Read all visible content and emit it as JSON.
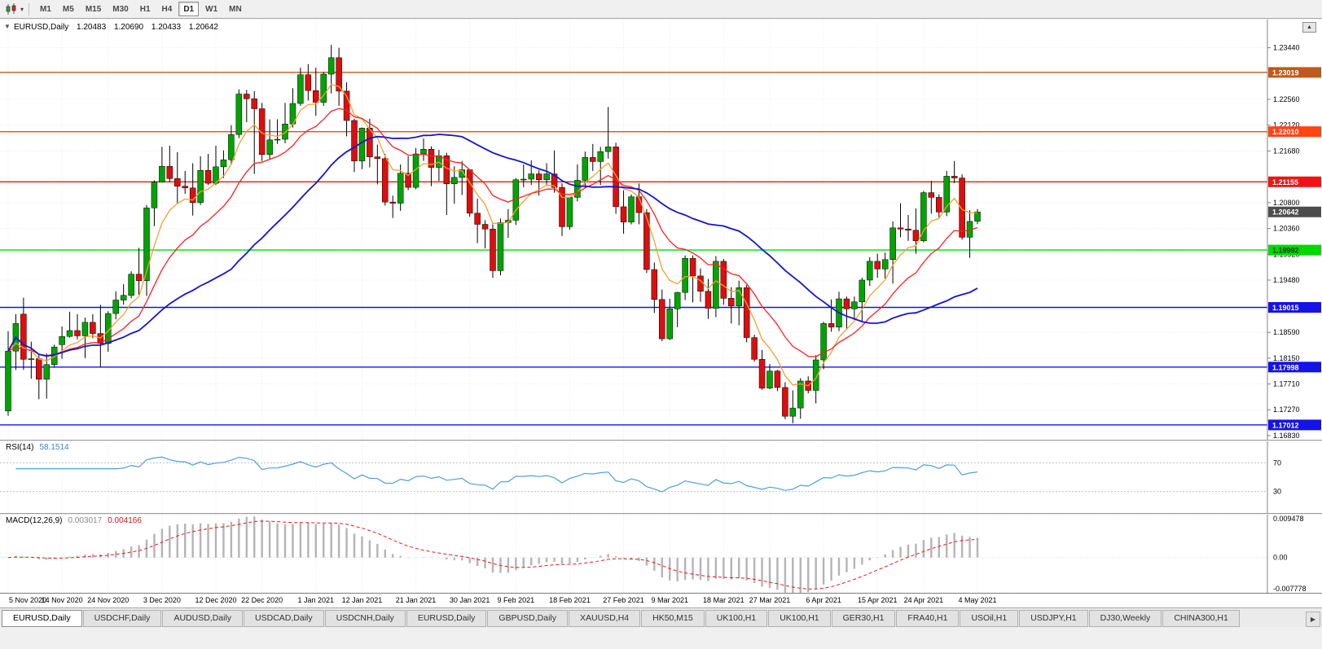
{
  "toolbar": {
    "timeframes": [
      "M1",
      "M5",
      "M15",
      "M30",
      "H1",
      "H4",
      "D1",
      "W1",
      "MN"
    ],
    "active_timeframe": "D1"
  },
  "icons": {
    "chart_type": "candlestick-chart-icon",
    "chart_type_dropdown_glyph": "▾",
    "one_click_trading_glyph": "▼",
    "scroll_up_glyph": "▲",
    "tab_scroll_right_glyph": "▶"
  },
  "chart_header": {
    "symbol": "EURUSD,Daily",
    "open": "1.20483",
    "high": "1.20690",
    "low": "1.20433",
    "close": "1.20642"
  },
  "tabs": {
    "active_index": 0,
    "items": [
      "EURUSD,Daily",
      "USDCHF,Daily",
      "AUDUSD,Daily",
      "USDCAD,Daily",
      "USDCNH,Daily",
      "EURUSD,Daily",
      "GBPUSD,Daily",
      "XAUUSD,H4",
      "HK50,M15",
      "UK100,H1",
      "UK100,H1",
      "GER30,H1",
      "FRA40,H1",
      "USOil,H1",
      "USDJPY,H1",
      "DJ30,Weekly",
      "CHINA300,H1"
    ]
  },
  "chart_data": {
    "type": "candlestick",
    "symbol": "EURUSD",
    "timeframe": "Daily",
    "y_range": [
      1.1676,
      1.2392
    ],
    "y_axis_ticks": [
      "1.23440",
      "1.22560",
      "1.22120",
      "1.21680",
      "1.20800",
      "1.20360",
      "1.19920",
      "1.19480",
      "1.18590",
      "1.18150",
      "1.17710",
      "1.17270",
      "1.16830"
    ],
    "x_labels": [
      "5 Nov 2020",
      "14 Nov 2020",
      "24 Nov 2020",
      "3 Dec 2020",
      "12 Dec 2020",
      "22 Dec 2020",
      "1 Jan 2021",
      "12 Jan 2021",
      "21 Jan 2021",
      "30 Jan 2021",
      "9 Feb 2021",
      "18 Feb 2021",
      "27 Feb 2021",
      "9 Mar 2021",
      "18 Mar 2021",
      "27 Mar 2021",
      "6 Apr 2021",
      "15 Apr 2021",
      "24 Apr 2021",
      "4 May 2021"
    ],
    "candle_up_color": "#00a400",
    "candle_down_color": "#df0d0d",
    "ohlc": [
      [
        1.1725,
        1.1861,
        1.1717,
        1.1827
      ],
      [
        1.1827,
        1.189,
        1.1795,
        1.1874
      ],
      [
        1.189,
        1.1918,
        1.1795,
        1.1813
      ],
      [
        1.1813,
        1.1843,
        1.178,
        1.1814
      ],
      [
        1.1814,
        1.182,
        1.1745,
        1.1779
      ],
      [
        1.1779,
        1.1823,
        1.1746,
        1.1804
      ],
      [
        1.1804,
        1.1838,
        1.1799,
        1.1834
      ],
      [
        1.1838,
        1.1869,
        1.1814,
        1.1852
      ],
      [
        1.1852,
        1.1894,
        1.185,
        1.1862
      ],
      [
        1.1862,
        1.189,
        1.1847,
        1.1853
      ],
      [
        1.1853,
        1.1884,
        1.1815,
        1.1876
      ],
      [
        1.1876,
        1.189,
        1.1849,
        1.1857
      ],
      [
        1.1857,
        1.1906,
        1.18,
        1.184
      ],
      [
        1.184,
        1.1895,
        1.1826,
        1.1891
      ],
      [
        1.1891,
        1.1929,
        1.1881,
        1.1914
      ],
      [
        1.1914,
        1.1941,
        1.1906,
        1.1922
      ],
      [
        1.1922,
        1.1963,
        1.1917,
        1.1958
      ],
      [
        1.1958,
        1.2003,
        1.1923,
        1.1947
      ],
      [
        1.1947,
        1.2076,
        1.1921,
        1.2071
      ],
      [
        1.2071,
        1.2118,
        1.204,
        1.2115
      ],
      [
        1.2115,
        1.2175,
        1.2114,
        1.2142
      ],
      [
        1.2142,
        1.2177,
        1.2115,
        1.2121
      ],
      [
        1.2121,
        1.2166,
        1.2079,
        1.2108
      ],
      [
        1.2108,
        1.2134,
        1.2095,
        1.2105
      ],
      [
        1.2105,
        1.2147,
        1.2058,
        1.208
      ],
      [
        1.208,
        1.2159,
        1.2076,
        1.2135
      ],
      [
        1.2135,
        1.2163,
        1.211,
        1.2113
      ],
      [
        1.2113,
        1.2177,
        1.211,
        1.2141
      ],
      [
        1.2141,
        1.2169,
        1.2122,
        1.2153
      ],
      [
        1.2153,
        1.2212,
        1.2145,
        1.2196
      ],
      [
        1.2196,
        1.2273,
        1.219,
        1.2265
      ],
      [
        1.2265,
        1.2272,
        1.2217,
        1.2257
      ],
      [
        1.2257,
        1.227,
        1.2129,
        1.224
      ],
      [
        1.224,
        1.225,
        1.2151,
        1.2162
      ],
      [
        1.2162,
        1.2222,
        1.2153,
        1.2187
      ],
      [
        1.2187,
        1.2222,
        1.218,
        1.2188
      ],
      [
        1.2188,
        1.225,
        1.2181,
        1.2214
      ],
      [
        1.2214,
        1.2275,
        1.2208,
        1.2249
      ],
      [
        1.2249,
        1.231,
        1.2245,
        1.2298
      ],
      [
        1.2298,
        1.2316,
        1.2254,
        1.2271
      ],
      [
        1.2271,
        1.231,
        1.2228,
        1.2251
      ],
      [
        1.2251,
        1.2303,
        1.2245,
        1.2299
      ],
      [
        1.2299,
        1.2349,
        1.2266,
        1.2327
      ],
      [
        1.2327,
        1.2344,
        1.2245,
        1.227
      ],
      [
        1.227,
        1.2285,
        1.2193,
        1.222
      ],
      [
        1.222,
        1.2223,
        1.2132,
        1.2151
      ],
      [
        1.2151,
        1.2208,
        1.2137,
        1.2207
      ],
      [
        1.2207,
        1.2223,
        1.214,
        1.2158
      ],
      [
        1.2158,
        1.2179,
        1.2111,
        1.2155
      ],
      [
        1.2155,
        1.2163,
        1.2075,
        1.2081
      ],
      [
        1.2081,
        1.2092,
        1.2054,
        1.2079
      ],
      [
        1.2079,
        1.2145,
        1.2066,
        1.213
      ],
      [
        1.213,
        1.2159,
        1.2101,
        1.2106
      ],
      [
        1.2106,
        1.2173,
        1.2103,
        1.2163
      ],
      [
        1.2163,
        1.2189,
        1.2151,
        1.2171
      ],
      [
        1.2171,
        1.2176,
        1.2108,
        1.214
      ],
      [
        1.214,
        1.217,
        1.2117,
        1.216
      ],
      [
        1.216,
        1.2165,
        1.2059,
        1.2112
      ],
      [
        1.2112,
        1.2142,
        1.2078,
        1.2123
      ],
      [
        1.2123,
        1.2151,
        1.2093,
        1.2136
      ],
      [
        1.2136,
        1.2136,
        1.2056,
        1.2062
      ],
      [
        1.2062,
        1.2087,
        1.2011,
        1.2043
      ],
      [
        1.2043,
        1.205,
        1.2002,
        1.2035
      ],
      [
        1.2035,
        1.2043,
        1.1952,
        1.1964
      ],
      [
        1.1964,
        1.2053,
        1.1956,
        1.2046
      ],
      [
        1.2046,
        1.2069,
        1.202,
        1.205
      ],
      [
        1.205,
        1.2122,
        1.2042,
        1.2119
      ],
      [
        1.2119,
        1.2145,
        1.2106,
        1.212
      ],
      [
        1.212,
        1.2152,
        1.211,
        1.2129
      ],
      [
        1.2129,
        1.2135,
        1.2092,
        1.2119
      ],
      [
        1.2119,
        1.2147,
        1.211,
        1.2129
      ],
      [
        1.2129,
        1.2169,
        1.2097,
        1.2106
      ],
      [
        1.2106,
        1.2113,
        1.2023,
        1.2039
      ],
      [
        1.2039,
        1.2089,
        1.2034,
        1.2089
      ],
      [
        1.2089,
        1.2145,
        1.2082,
        1.2118
      ],
      [
        1.2118,
        1.2167,
        1.2104,
        1.2157
      ],
      [
        1.2157,
        1.218,
        1.2134,
        1.215
      ],
      [
        1.215,
        1.2175,
        1.211,
        1.2167
      ],
      [
        1.2167,
        1.2243,
        1.2155,
        1.2175
      ],
      [
        1.2175,
        1.2182,
        1.2061,
        1.2073
      ],
      [
        1.2073,
        1.2101,
        1.2027,
        1.2047
      ],
      [
        1.2047,
        1.2094,
        1.2043,
        1.209
      ],
      [
        1.209,
        1.2113,
        1.2043,
        1.2063
      ],
      [
        1.2063,
        1.2069,
        1.196,
        1.1966
      ],
      [
        1.1966,
        1.1978,
        1.1892,
        1.1915
      ],
      [
        1.1915,
        1.1932,
        1.1844,
        1.1848
      ],
      [
        1.1848,
        1.1916,
        1.1846,
        1.1899
      ],
      [
        1.1899,
        1.1928,
        1.1868,
        1.1927
      ],
      [
        1.1927,
        1.199,
        1.1914,
        1.1985
      ],
      [
        1.1985,
        1.199,
        1.191,
        1.1955
      ],
      [
        1.1955,
        1.1968,
        1.1911,
        1.1929
      ],
      [
        1.1929,
        1.195,
        1.1882,
        1.19
      ],
      [
        1.19,
        1.1989,
        1.1885,
        1.198
      ],
      [
        1.198,
        1.1984,
        1.1906,
        1.1917
      ],
      [
        1.1917,
        1.1936,
        1.1874,
        1.1904
      ],
      [
        1.1904,
        1.1947,
        1.1871,
        1.1935
      ],
      [
        1.1935,
        1.194,
        1.1842,
        1.185
      ],
      [
        1.185,
        1.1855,
        1.1809,
        1.1813
      ],
      [
        1.1813,
        1.1829,
        1.1761,
        1.1764
      ],
      [
        1.1764,
        1.1805,
        1.1762,
        1.1793
      ],
      [
        1.1793,
        1.1795,
        1.1759,
        1.1765
      ],
      [
        1.1765,
        1.1774,
        1.1711,
        1.1716
      ],
      [
        1.1716,
        1.176,
        1.1704,
        1.173
      ],
      [
        1.173,
        1.1781,
        1.1712,
        1.1776
      ],
      [
        1.1776,
        1.1784,
        1.1755,
        1.176
      ],
      [
        1.176,
        1.182,
        1.1738,
        1.1812
      ],
      [
        1.1812,
        1.1877,
        1.1796,
        1.1874
      ],
      [
        1.1874,
        1.1915,
        1.186,
        1.1868
      ],
      [
        1.1868,
        1.1928,
        1.1861,
        1.1916
      ],
      [
        1.1916,
        1.192,
        1.1865,
        1.1899
      ],
      [
        1.1899,
        1.192,
        1.188,
        1.1911
      ],
      [
        1.1911,
        1.1952,
        1.1878,
        1.1948
      ],
      [
        1.1948,
        1.1987,
        1.1938,
        1.198
      ],
      [
        1.198,
        1.1993,
        1.1952,
        1.1967
      ],
      [
        1.1967,
        1.1995,
        1.1951,
        1.1983
      ],
      [
        1.1983,
        1.2048,
        1.1942,
        1.2037
      ],
      [
        1.2037,
        1.2079,
        1.2021,
        1.2035
      ],
      [
        1.2035,
        1.2059,
        1.2015,
        1.2033
      ],
      [
        1.2033,
        1.207,
        1.1993,
        1.2015
      ],
      [
        1.2015,
        1.21,
        1.2012,
        1.2097
      ],
      [
        1.2097,
        1.2117,
        1.2061,
        1.2089
      ],
      [
        1.2089,
        1.2094,
        1.2055,
        1.2064
      ],
      [
        1.2064,
        1.2134,
        1.2057,
        1.2125
      ],
      [
        1.2125,
        1.2151,
        1.2113,
        1.2122
      ],
      [
        1.2122,
        1.2128,
        1.2017,
        1.2021
      ],
      [
        1.2021,
        1.2067,
        1.1986,
        1.2048
      ],
      [
        1.20483,
        1.2069,
        1.20433,
        1.20642
      ]
    ],
    "moving_averages": [
      {
        "name": "fast-ma",
        "period": 6,
        "method": "ema",
        "color": "#f0a030",
        "width": 1.3
      },
      {
        "name": "medium-ma",
        "period": 14,
        "method": "ema",
        "color": "#ff1f1f",
        "width": 1.3
      },
      {
        "name": "slow-ma",
        "period": 30,
        "method": "sma",
        "color": "#1515cc",
        "width": 1.8
      }
    ],
    "horizontal_levels": [
      {
        "price": 1.23019,
        "label": "1.23019",
        "color": "#c0591b",
        "text": "#ffffff"
      },
      {
        "price": 1.2201,
        "label": "1.22010",
        "color": "#ff4511",
        "text": "#ffffff"
      },
      {
        "price": 1.21155,
        "label": "1.21155",
        "color": "#ee1414",
        "text": "#ffffff"
      },
      {
        "price": 1.19992,
        "label": "1.19992",
        "color": "#00d800",
        "text": "#00330a"
      },
      {
        "price": 1.19015,
        "label": "1.19015",
        "color": "#1414e6",
        "text": "#ffffff"
      },
      {
        "price": 1.17998,
        "label": "1.17998",
        "color": "#1414e6",
        "text": "#ffffff"
      },
      {
        "price": 1.17012,
        "label": "1.17012",
        "color": "#1414e6",
        "text": "#ffffff"
      }
    ],
    "current_price": {
      "value": 1.20642,
      "label": "1.20642",
      "bg": "#4d4d4d",
      "text": "#ffffff"
    },
    "rsi": {
      "label": "RSI(14)",
      "value": "58.1514",
      "period": 14,
      "levels": [
        70,
        30
      ],
      "range": [
        0,
        100
      ],
      "color": "#4fa0d8"
    },
    "macd": {
      "label": "MACD(12,26,9)",
      "fast": 12,
      "slow": 26,
      "signal": 9,
      "main_value": "0.003017",
      "signal_value": "0.004166",
      "range": [
        -0.007778,
        0.009478
      ],
      "axis_labels": [
        "0.009478",
        "0.00",
        "-0.007778"
      ],
      "histogram_color": "#b4b4b4",
      "signal_color": "#ee1414"
    }
  }
}
